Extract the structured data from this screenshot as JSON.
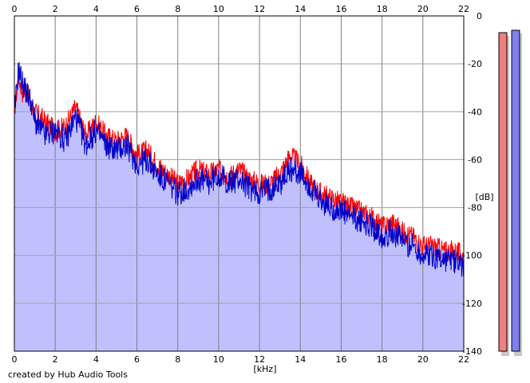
{
  "chart_data": {
    "type": "area",
    "title": "",
    "xlabel": "[kHz]",
    "ylabel": "[dB]",
    "xlim": [
      0,
      22
    ],
    "ylim": [
      -140,
      0
    ],
    "x_ticks": [
      "0",
      "2",
      "4",
      "6",
      "8",
      "10",
      "12",
      "14",
      "16",
      "18",
      "20",
      "22"
    ],
    "y_ticks": [
      "0",
      "-20",
      "-40",
      "-60",
      "-80",
      "-100",
      "-120",
      "-140"
    ],
    "grid": true,
    "series": [
      {
        "color": "#ff0000",
        "x": [
          0,
          0.2,
          0.4,
          0.6,
          0.8,
          1.0,
          1.5,
          2.0,
          2.5,
          3.0,
          3.5,
          4.0,
          4.5,
          5.0,
          5.5,
          6.0,
          6.5,
          7.0,
          7.5,
          8.0,
          8.5,
          9.0,
          9.5,
          10.0,
          10.5,
          11.0,
          11.5,
          12.0,
          12.5,
          13.0,
          13.5,
          14.0,
          14.5,
          15.0,
          15.5,
          16.0,
          16.5,
          17.0,
          17.5,
          18.0,
          18.5,
          19.0,
          19.5,
          20.0,
          20.5,
          21.0,
          21.5,
          22.0
        ],
        "values": [
          -40,
          -25,
          -32,
          -30,
          -38,
          -40,
          -44,
          -48,
          -46,
          -38,
          -50,
          -44,
          -50,
          -52,
          -50,
          -58,
          -56,
          -62,
          -66,
          -70,
          -68,
          -64,
          -66,
          -64,
          -67,
          -64,
          -68,
          -70,
          -70,
          -66,
          -58,
          -62,
          -70,
          -74,
          -76,
          -78,
          -80,
          -82,
          -84,
          -88,
          -86,
          -90,
          -92,
          -96,
          -96,
          -98,
          -98,
          -100
        ]
      },
      {
        "color": "#0000c8",
        "x": [
          0,
          0.2,
          0.4,
          0.6,
          0.8,
          1.0,
          1.5,
          2.0,
          2.5,
          3.0,
          3.5,
          4.0,
          4.5,
          5.0,
          5.5,
          6.0,
          6.5,
          7.0,
          7.5,
          8.0,
          8.5,
          9.0,
          9.5,
          10.0,
          10.5,
          11.0,
          11.5,
          12.0,
          12.5,
          13.0,
          13.5,
          14.0,
          14.5,
          15.0,
          15.5,
          16.0,
          16.5,
          17.0,
          17.5,
          18.0,
          18.5,
          19.0,
          19.5,
          20.0,
          20.5,
          21.0,
          21.5,
          22.0
        ],
        "values": [
          -42,
          -22,
          -28,
          -32,
          -35,
          -44,
          -50,
          -48,
          -52,
          -42,
          -54,
          -48,
          -54,
          -56,
          -54,
          -62,
          -60,
          -66,
          -70,
          -74,
          -72,
          -68,
          -70,
          -66,
          -70,
          -68,
          -72,
          -74,
          -72,
          -70,
          -64,
          -66,
          -72,
          -78,
          -80,
          -82,
          -84,
          -86,
          -88,
          -92,
          -90,
          -94,
          -96,
          -100,
          -100,
          -102,
          -102,
          -104
        ]
      }
    ],
    "fill_color": "#c0c0ff",
    "level_meters": [
      {
        "color": "#f08080",
        "level_db": -7
      },
      {
        "color": "#8080f0",
        "level_db": -6
      }
    ],
    "credit": "created by Hub Audio Tools"
  }
}
